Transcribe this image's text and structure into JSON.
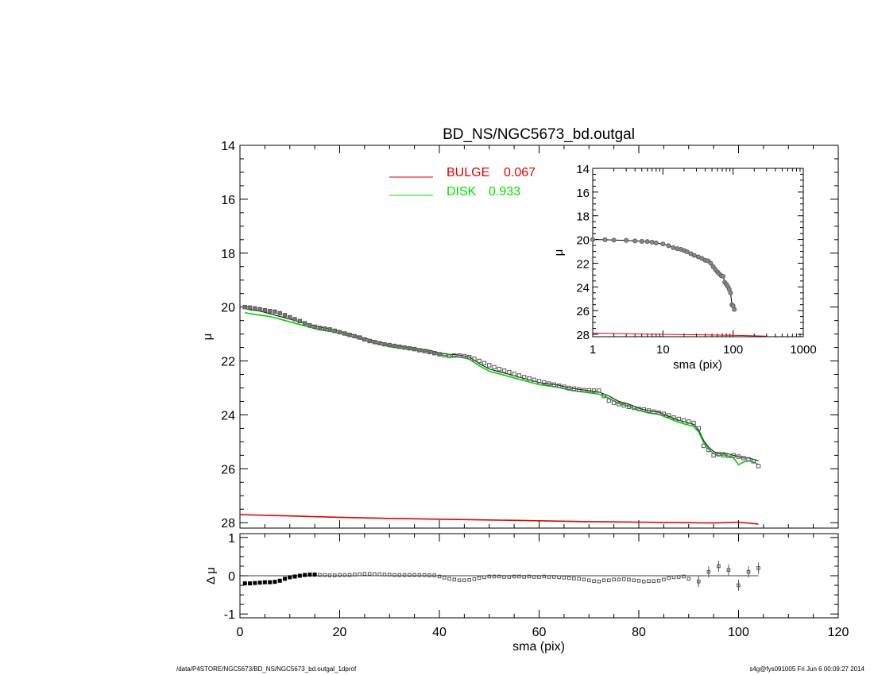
{
  "chart_data": [
    {
      "type": "scatter",
      "title": "BD_NS/NGC5673_bd.outgal",
      "xlabel": "",
      "ylabel": "μ",
      "xlim": [
        0,
        120
      ],
      "ylim": [
        28.2,
        14
      ],
      "y_inverted": true,
      "y_ticks": [
        "14",
        "16",
        "18",
        "20",
        "22",
        "24",
        "26",
        "28"
      ],
      "legend_position": "top-center",
      "legend": [
        {
          "label": "BULGE",
          "value": "0.067",
          "color": "#e00000"
        },
        {
          "label": "DISK",
          "value": "0.933",
          "color": "#00e000"
        }
      ],
      "observed": {
        "x": [
          1,
          2,
          3,
          4,
          5,
          6,
          7,
          8,
          9,
          10,
          11,
          12,
          13,
          14,
          15,
          16,
          17,
          18,
          19,
          20,
          21,
          22,
          23,
          24,
          25,
          26,
          27,
          28,
          29,
          30,
          31,
          32,
          33,
          34,
          35,
          36,
          37,
          38,
          39,
          40,
          41,
          42,
          43,
          44,
          45,
          46,
          47,
          48,
          49,
          50,
          51,
          52,
          53,
          54,
          55,
          56,
          57,
          58,
          59,
          60,
          61,
          62,
          63,
          64,
          65,
          66,
          67,
          68,
          69,
          70,
          71,
          72,
          73,
          74,
          75,
          76,
          77,
          78,
          79,
          80,
          81,
          82,
          83,
          84,
          85,
          86,
          87,
          88,
          89,
          90,
          91,
          92,
          93,
          94,
          95,
          96,
          97,
          98,
          99,
          100,
          101,
          102,
          103,
          104
        ],
        "y": [
          20.0,
          20.02,
          20.05,
          20.08,
          20.12,
          20.15,
          20.17,
          20.23,
          20.3,
          20.38,
          20.45,
          20.52,
          20.6,
          20.68,
          20.73,
          20.77,
          20.8,
          20.83,
          20.88,
          20.93,
          20.98,
          21.03,
          21.08,
          21.13,
          21.2,
          21.26,
          21.3,
          21.34,
          21.38,
          21.41,
          21.44,
          21.47,
          21.5,
          21.53,
          21.56,
          21.6,
          21.63,
          21.67,
          21.71,
          21.75,
          21.79,
          21.82,
          21.8,
          21.8,
          21.82,
          21.86,
          21.92,
          22.0,
          22.08,
          22.16,
          22.23,
          22.3,
          22.36,
          22.42,
          22.48,
          22.54,
          22.6,
          22.65,
          22.7,
          22.75,
          22.8,
          22.84,
          22.88,
          22.92,
          22.96,
          23.0,
          23.03,
          23.06,
          23.08,
          23.09,
          23.1,
          23.1,
          23.3,
          23.47,
          23.55,
          23.6,
          23.65,
          23.7,
          23.74,
          23.78,
          23.8,
          23.84,
          23.88,
          23.92,
          23.96,
          24.02,
          24.1,
          24.15,
          24.2,
          24.25,
          24.3,
          24.5,
          25.15,
          25.3,
          25.5,
          25.45,
          25.5,
          25.52,
          25.5,
          25.55,
          25.6,
          25.65,
          25.72,
          25.9
        ]
      },
      "model_total": {
        "x": [
          1,
          2,
          4,
          6,
          8,
          10,
          12,
          14,
          16,
          18,
          20,
          22,
          24,
          26,
          28,
          30,
          32,
          34,
          36,
          38,
          40,
          42,
          44,
          46,
          48,
          50,
          52,
          54,
          56,
          58,
          60,
          62,
          64,
          66,
          68,
          70,
          72,
          74,
          76,
          78,
          80,
          82,
          84,
          86,
          88,
          90,
          91,
          92,
          93,
          94,
          95,
          96,
          97,
          98,
          99,
          100,
          101,
          102,
          103,
          104
        ],
        "y": [
          20.05,
          20.1,
          20.15,
          20.25,
          20.35,
          20.45,
          20.55,
          20.65,
          20.75,
          20.8,
          20.9,
          21.0,
          21.1,
          21.2,
          21.3,
          21.4,
          21.45,
          21.5,
          21.55,
          21.6,
          21.7,
          21.75,
          21.78,
          21.85,
          22.1,
          22.3,
          22.4,
          22.5,
          22.6,
          22.7,
          22.8,
          22.85,
          22.9,
          23.0,
          23.05,
          23.1,
          23.15,
          23.3,
          23.5,
          23.6,
          23.75,
          23.85,
          23.9,
          24.05,
          24.2,
          24.3,
          24.35,
          24.55,
          24.95,
          25.2,
          25.35,
          25.45,
          25.4,
          25.45,
          25.5,
          25.55,
          25.6,
          25.6,
          25.65,
          25.7
        ]
      },
      "disk": {
        "x": [
          1,
          2,
          4,
          6,
          8,
          10,
          12,
          14,
          16,
          18,
          20,
          22,
          24,
          26,
          28,
          30,
          32,
          34,
          36,
          38,
          40,
          42,
          44,
          46,
          48,
          50,
          52,
          54,
          56,
          58,
          60,
          62,
          64,
          66,
          68,
          70,
          72,
          74,
          76,
          78,
          80,
          82,
          84,
          86,
          88,
          90,
          91,
          92,
          93,
          94,
          95,
          96,
          97,
          98,
          99,
          100,
          101,
          102,
          103,
          104
        ],
        "y": [
          20.2,
          20.25,
          20.3,
          20.35,
          20.45,
          20.55,
          20.65,
          20.75,
          20.85,
          20.9,
          20.98,
          21.08,
          21.18,
          21.28,
          21.38,
          21.47,
          21.52,
          21.57,
          21.62,
          21.67,
          21.77,
          21.82,
          21.85,
          21.93,
          22.18,
          22.38,
          22.48,
          22.58,
          22.68,
          22.78,
          22.88,
          22.93,
          22.98,
          23.08,
          23.13,
          23.18,
          23.23,
          23.38,
          23.58,
          23.68,
          23.83,
          23.93,
          23.98,
          24.13,
          24.28,
          24.38,
          24.43,
          24.63,
          25.03,
          25.28,
          25.43,
          25.53,
          25.48,
          25.53,
          25.6,
          25.85,
          25.75,
          25.7,
          25.75,
          25.85
        ]
      },
      "bulge": {
        "x": [
          0,
          10,
          20,
          30,
          40,
          50,
          60,
          70,
          80,
          90,
          95,
          100,
          104
        ],
        "y": [
          27.7,
          27.75,
          27.8,
          27.84,
          27.87,
          27.9,
          27.93,
          27.96,
          27.98,
          28.0,
          28.01,
          27.98,
          28.05
        ]
      }
    },
    {
      "type": "scatter",
      "xlabel": "sma (pix)",
      "ylabel": "Δ μ",
      "xlim": [
        0,
        120
      ],
      "ylim": [
        -1.1,
        1.1
      ],
      "x_ticks": [
        "0",
        "20",
        "40",
        "60",
        "80",
        "100",
        "120"
      ],
      "y_ticks": [
        "1",
        "0",
        "-1"
      ],
      "residual": {
        "x": [
          1,
          2,
          3,
          4,
          5,
          6,
          7,
          8,
          9,
          10,
          11,
          12,
          13,
          14,
          15,
          16,
          17,
          18,
          19,
          20,
          21,
          22,
          23,
          24,
          25,
          26,
          27,
          28,
          29,
          30,
          31,
          32,
          33,
          34,
          35,
          36,
          37,
          38,
          39,
          40,
          41,
          42,
          43,
          44,
          45,
          46,
          47,
          48,
          49,
          50,
          51,
          52,
          53,
          54,
          55,
          56,
          57,
          58,
          59,
          60,
          61,
          62,
          63,
          64,
          65,
          66,
          67,
          68,
          69,
          70,
          71,
          72,
          73,
          74,
          75,
          76,
          77,
          78,
          79,
          80,
          81,
          82,
          83,
          84,
          85,
          86,
          87,
          88,
          89,
          90,
          92,
          94,
          96,
          98,
          100,
          102,
          104
        ],
        "y": [
          -0.2,
          -0.2,
          -0.19,
          -0.18,
          -0.17,
          -0.17,
          -0.16,
          -0.13,
          -0.08,
          -0.04,
          -0.02,
          0.0,
          0.02,
          0.03,
          0.03,
          0.02,
          0.02,
          0.01,
          0.01,
          0.02,
          0.02,
          0.02,
          0.03,
          0.04,
          0.05,
          0.05,
          0.04,
          0.04,
          0.03,
          0.03,
          0.02,
          0.02,
          0.02,
          0.02,
          0.02,
          0.02,
          0.02,
          0.01,
          0.01,
          -0.02,
          -0.05,
          -0.08,
          -0.1,
          -0.12,
          -0.12,
          -0.11,
          -0.09,
          -0.06,
          -0.04,
          -0.02,
          -0.02,
          -0.02,
          -0.03,
          -0.03,
          -0.02,
          -0.02,
          -0.03,
          -0.02,
          -0.03,
          -0.03,
          -0.02,
          -0.03,
          -0.03,
          -0.04,
          -0.05,
          -0.06,
          -0.07,
          -0.08,
          -0.1,
          -0.12,
          -0.14,
          -0.15,
          -0.12,
          -0.12,
          -0.1,
          -0.1,
          -0.09,
          -0.1,
          -0.12,
          -0.13,
          -0.15,
          -0.14,
          -0.14,
          -0.13,
          -0.1,
          -0.06,
          -0.04,
          -0.03,
          -0.02,
          -0.08,
          -0.15,
          0.1,
          0.25,
          0.15,
          -0.25,
          0.1,
          0.2
        ]
      }
    },
    {
      "type": "scatter",
      "xlabel": "sma (pix)",
      "ylabel": "μ",
      "xscale": "log",
      "xlim": [
        1,
        1000
      ],
      "ylim": [
        28.2,
        14
      ],
      "y_inverted": true,
      "x_ticks": [
        "1",
        "10",
        "100",
        "1000"
      ],
      "y_ticks": [
        "14",
        "16",
        "18",
        "20",
        "22",
        "24",
        "26",
        "28"
      ],
      "observed": {
        "x": [
          1,
          1.5,
          2,
          3,
          4,
          5,
          6,
          7,
          8,
          10,
          12,
          14,
          16,
          18,
          20,
          22,
          25,
          28,
          32,
          36,
          40,
          44,
          48,
          52,
          56,
          60,
          64,
          68,
          72,
          76,
          80,
          84,
          88,
          92,
          96,
          100,
          104
        ],
        "y": [
          20.0,
          20.02,
          20.05,
          20.08,
          20.12,
          20.15,
          20.17,
          20.23,
          20.3,
          20.38,
          20.52,
          20.68,
          20.77,
          20.83,
          20.93,
          21.03,
          21.2,
          21.34,
          21.47,
          21.6,
          21.75,
          21.8,
          22.0,
          22.3,
          22.54,
          22.75,
          22.92,
          23.06,
          23.1,
          23.6,
          23.78,
          23.96,
          24.2,
          24.5,
          25.5,
          25.6,
          25.9
        ]
      },
      "bulge": {
        "x": [
          1,
          10,
          100,
          300
        ],
        "y": [
          27.9,
          28.0,
          28.08,
          28.15
        ]
      }
    }
  ],
  "footer": {
    "left": "/data/P4STORE/NGC5673/BD_NS/NGC5673_bd.outgal_1dprof",
    "right": "s4g@fys091005  Fri Jun  6 00:09:27 2014"
  }
}
